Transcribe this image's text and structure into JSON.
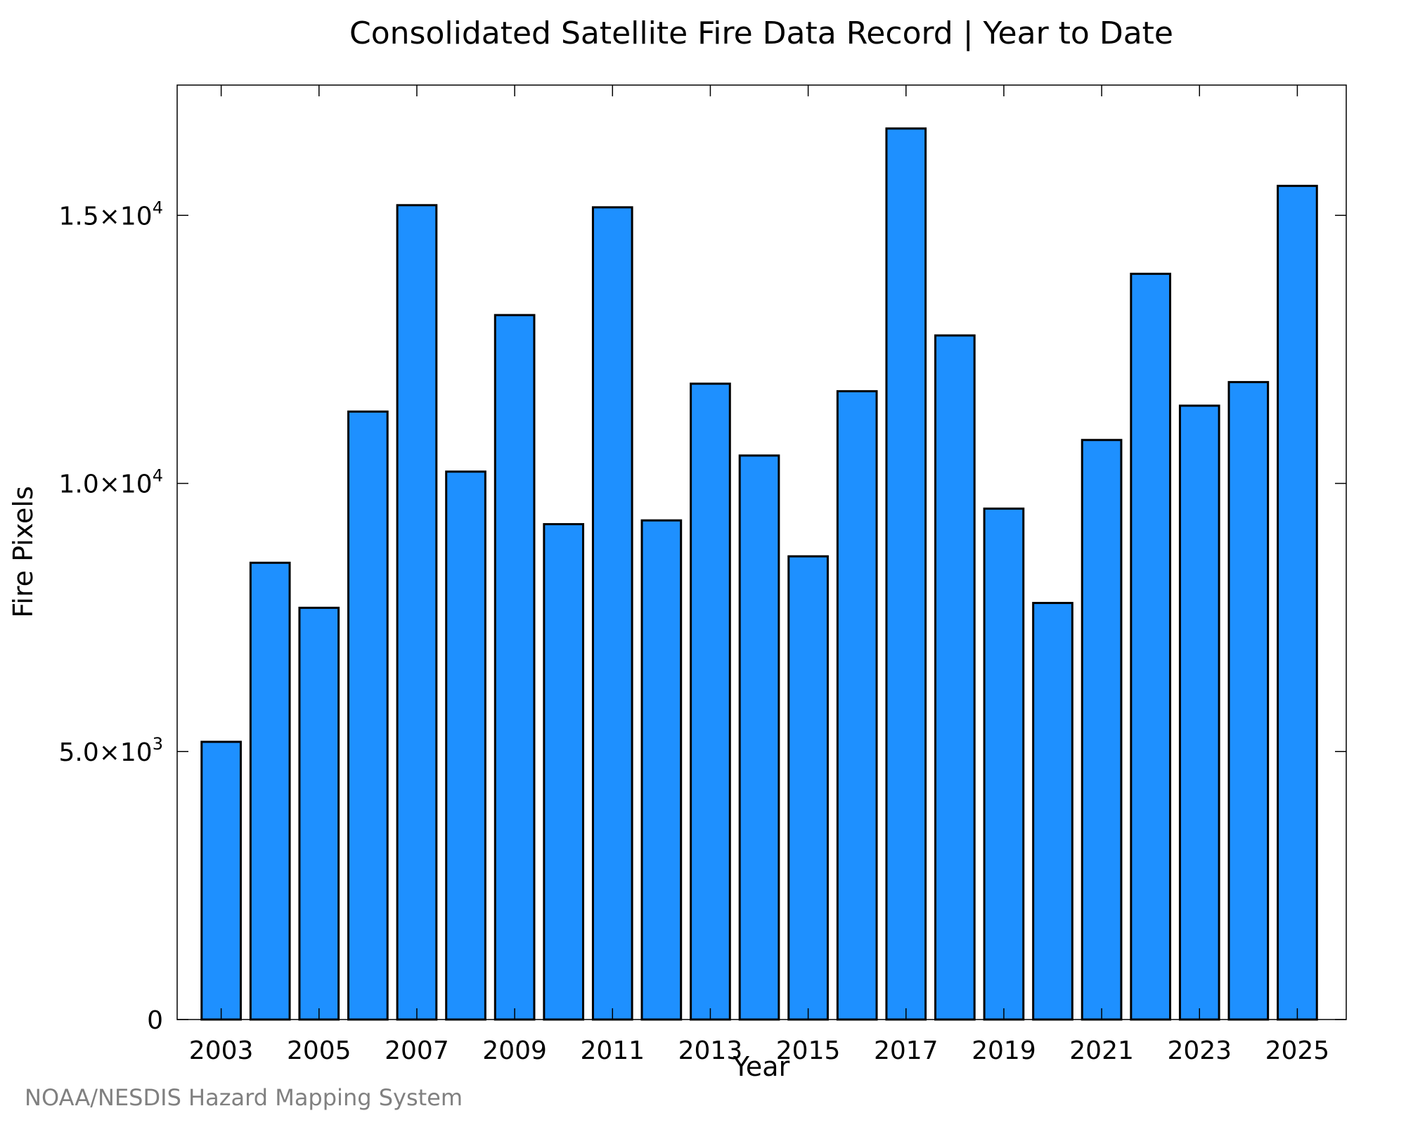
{
  "chart_data": {
    "type": "bar",
    "title": "Consolidated Satellite Fire Data Record | Year to Date",
    "xlabel": "Year",
    "ylabel": "Fire Pixels",
    "x": [
      2003,
      2004,
      2005,
      2006,
      2007,
      2008,
      2009,
      2010,
      2011,
      2012,
      2013,
      2014,
      2015,
      2016,
      2017,
      2018,
      2019,
      2020,
      2021,
      2022,
      2023,
      2024,
      2025
    ],
    "values": [
      5180,
      8520,
      7680,
      11340,
      15190,
      10220,
      13140,
      9240,
      15150,
      9310,
      11860,
      10520,
      8640,
      11720,
      16620,
      12760,
      9530,
      7770,
      10810,
      13910,
      11450,
      11890,
      15550
    ],
    "xticks": [
      "2003",
      "2005",
      "2007",
      "2009",
      "2011",
      "2013",
      "2015",
      "2017",
      "2019",
      "2021",
      "2023",
      "2025"
    ],
    "yticks": [
      {
        "value": 0,
        "label": "0",
        "exp": ""
      },
      {
        "value": 5000,
        "label": "5.0×10",
        "exp": "3"
      },
      {
        "value": 10000,
        "label": "1.0×10",
        "exp": "4"
      },
      {
        "value": 15000,
        "label": "1.5×10",
        "exp": "4"
      }
    ],
    "xlim": [
      2002.1,
      2026
    ],
    "ylim": [
      0,
      17430
    ],
    "bar_color": "#1E90FF",
    "bar_edge_color": "#000000",
    "grid": false,
    "legend": "none"
  },
  "credit": "NOAA/NESDIS Hazard Mapping System"
}
